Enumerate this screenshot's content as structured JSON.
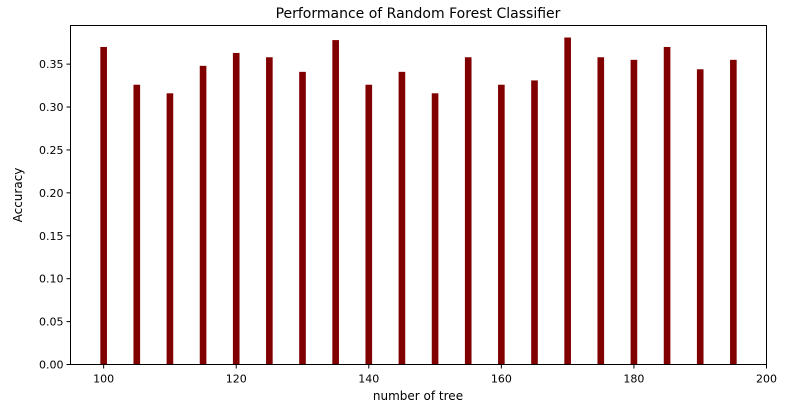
{
  "chart_data": {
    "type": "bar",
    "title": "Performance of Random Forest Classifier",
    "xlabel": "number of tree",
    "ylabel": "Accuracy",
    "x": [
      100,
      105,
      110,
      115,
      120,
      125,
      130,
      135,
      140,
      145,
      150,
      155,
      160,
      165,
      170,
      175,
      180,
      185,
      190,
      195
    ],
    "values": [
      0.37,
      0.326,
      0.316,
      0.348,
      0.363,
      0.358,
      0.341,
      0.378,
      0.326,
      0.341,
      0.316,
      0.358,
      0.326,
      0.331,
      0.381,
      0.358,
      0.355,
      0.37,
      0.344,
      0.355
    ],
    "bar_width": 1,
    "xlim": [
      95,
      200
    ],
    "ylim": [
      0,
      0.395
    ],
    "xticks": [
      100,
      120,
      140,
      160,
      180,
      200
    ],
    "xtick_labels": [
      "100",
      "120",
      "140",
      "160",
      "180",
      "200"
    ],
    "yticks": [
      0,
      0.05,
      0.1,
      0.15,
      0.2,
      0.25,
      0.3,
      0.35
    ],
    "ytick_labels": [
      "0.00",
      "0.05",
      "0.10",
      "0.15",
      "0.20",
      "0.25",
      "0.30",
      "0.35"
    ],
    "bar_color": "#800000",
    "grid": false,
    "legend": "none"
  }
}
